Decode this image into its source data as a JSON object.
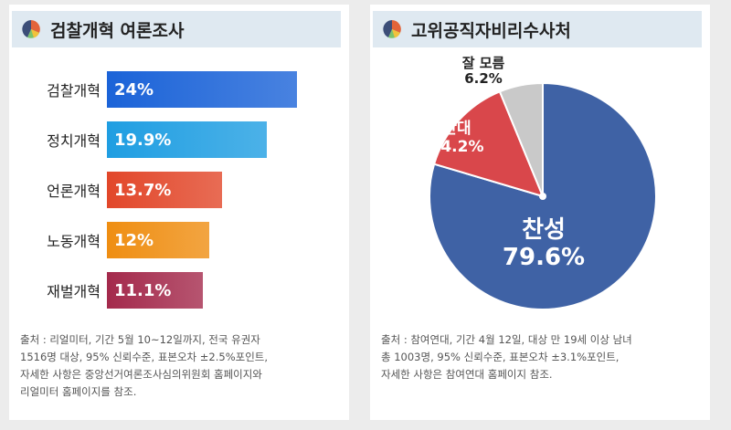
{
  "chart_data": [
    {
      "type": "bar",
      "title": "검찰개혁 여론조사",
      "categories": [
        "검찰개혁",
        "정치개혁",
        "언론개혁",
        "노동개혁",
        "재벌개혁"
      ],
      "values": [
        24,
        19.9,
        13.7,
        12,
        11.1
      ],
      "value_labels": [
        "24%",
        "19.9%",
        "13.7%",
        "12%",
        "11.1%"
      ],
      "colors": [
        "#1b63d8",
        "#1f9ee2",
        "#e2472a",
        "#ef8e12",
        "#a42a4c"
      ],
      "source": [
        "출처 : 리얼미터, 기간 5월 10~12일까지, 전국 유권자",
        "1516명 대상, 95% 신뢰수준, 표본오차 ±2.5%포인트,",
        "자세한 사항은 중앙선거여론조사심의위원회 홈페이지와",
        "리얼미터 홈페이지를 참조."
      ]
    },
    {
      "type": "pie",
      "title": "고위공직자비리수사처",
      "slices": [
        {
          "label": "찬성",
          "value": 79.6,
          "value_label": "79.6%",
          "color": "#3f62a5"
        },
        {
          "label": "반대",
          "value": 14.2,
          "value_label": "14.2%",
          "color": "#d9474b"
        },
        {
          "label": "잘 모름",
          "value": 6.2,
          "value_label": "6.2%",
          "color": "#c9c9c9"
        }
      ],
      "source": [
        "출처 : 참여연대, 기간 4월 12일, 대상 만 19세 이상 남녀",
        "총 1003명, 95% 신뢰수준, 표본오차 ±3.1%포인트,",
        "자세한 사항은 참여연대 홈페이지 참조."
      ]
    }
  ]
}
